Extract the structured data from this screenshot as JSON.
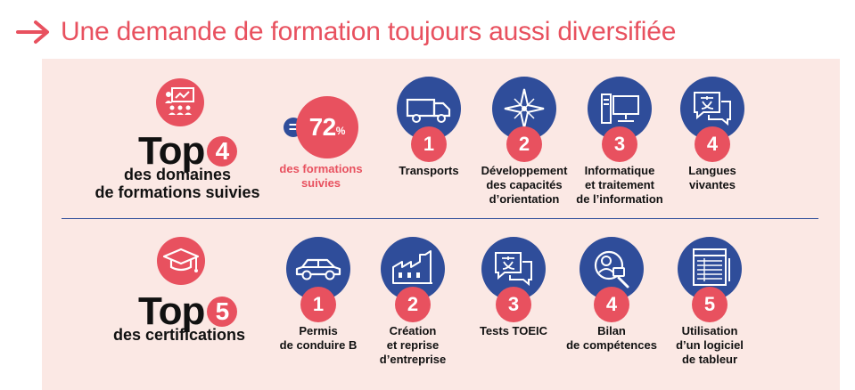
{
  "title": "Une demande de formation toujours aussi diversifiée",
  "colors": {
    "accent": "#e8515f",
    "blue": "#2f4d9a",
    "panel": "#fbe8e4"
  },
  "section1": {
    "icon": "training-room-icon",
    "top_word": "Top",
    "number": "4",
    "subtitle_line1": "des domaines",
    "subtitle_line2": "de formations suivies",
    "equal_sign": "=",
    "percent_value": "72",
    "percent_sign": "%",
    "percent_label_line1": "des formations",
    "percent_label_line2": "suivies",
    "items": [
      {
        "rank": "1",
        "icon": "truck-icon",
        "lines": [
          "Transports"
        ]
      },
      {
        "rank": "2",
        "icon": "compass-rose-icon",
        "lines": [
          "Développement",
          "des capacités",
          "d’orientation"
        ]
      },
      {
        "rank": "3",
        "icon": "computer-icon",
        "lines": [
          "Informatique",
          "et traitement",
          "de l’information"
        ]
      },
      {
        "rank": "4",
        "icon": "translate-chat-icon",
        "lines": [
          "Langues",
          "vivantes"
        ]
      }
    ]
  },
  "section2": {
    "icon": "graduation-cap-icon",
    "top_word": "Top",
    "number": "5",
    "subtitle_line1": "des certifications",
    "items": [
      {
        "rank": "1",
        "icon": "car-icon",
        "lines": [
          "Permis",
          "de conduire B"
        ]
      },
      {
        "rank": "2",
        "icon": "factory-icon",
        "lines": [
          "Création",
          "et reprise",
          "d’entreprise"
        ]
      },
      {
        "rank": "3",
        "icon": "translate-chat-icon",
        "lines": [
          "Tests TOEIC"
        ]
      },
      {
        "rank": "4",
        "icon": "skills-assessment-icon",
        "lines": [
          "Bilan",
          "de compétences"
        ]
      },
      {
        "rank": "5",
        "icon": "spreadsheet-icon",
        "lines": [
          "Utilisation",
          "d’un logiciel",
          "de tableur"
        ]
      }
    ]
  }
}
